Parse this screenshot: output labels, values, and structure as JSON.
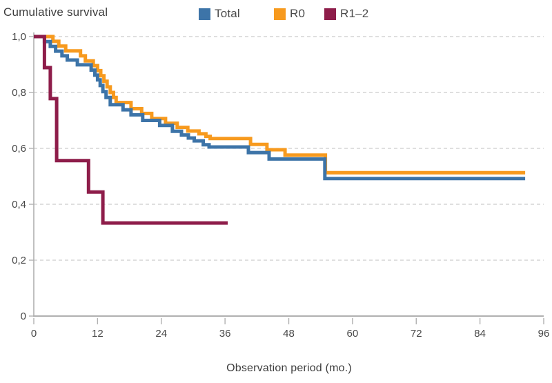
{
  "header": {
    "title": "Cumulative survival"
  },
  "axis": {
    "x_title": "Observation period (mo.)"
  },
  "chart_data": {
    "type": "line",
    "subtype": "kaplan-meier-step",
    "title": "Cumulative survival",
    "xlabel": "Observation period (mo.)",
    "ylabel": "Cumulative survival",
    "xlim": [
      0,
      96
    ],
    "ylim": [
      0,
      1.0
    ],
    "grid": "horizontal-dashed",
    "legend_position": "top",
    "x_ticks": [
      0,
      12,
      24,
      36,
      48,
      60,
      72,
      84,
      96
    ],
    "y_ticks": [
      {
        "value": 1.0,
        "label": "1,0"
      },
      {
        "value": 0.8,
        "label": "0,8"
      },
      {
        "value": 0.6,
        "label": "0,6"
      },
      {
        "value": 0.4,
        "label": "0,4"
      },
      {
        "value": 0.2,
        "label": "0,2"
      },
      {
        "value": 0.0,
        "label": "0"
      }
    ],
    "colors": {
      "total": "#3d74a8",
      "r0": "#f79a1e",
      "r12": "#8e1d4a",
      "grid": "#cccccc",
      "axis": "#b0b0b0",
      "text": "#3d3d3d"
    },
    "series": [
      {
        "name": "Total",
        "color": "#3d74a8",
        "start": [
          0,
          1.0
        ],
        "end_month": 92.5,
        "steps": [
          [
            2.0,
            0.982
          ],
          [
            3.1,
            0.965
          ],
          [
            4.1,
            0.948
          ],
          [
            5.3,
            0.931
          ],
          [
            6.3,
            0.916
          ],
          [
            8.2,
            0.899
          ],
          [
            10.8,
            0.88
          ],
          [
            11.5,
            0.862
          ],
          [
            12.0,
            0.845
          ],
          [
            12.5,
            0.825
          ],
          [
            13.0,
            0.803
          ],
          [
            13.6,
            0.782
          ],
          [
            14.4,
            0.756
          ],
          [
            16.8,
            0.738
          ],
          [
            18.3,
            0.72
          ],
          [
            20.5,
            0.7
          ],
          [
            23.7,
            0.682
          ],
          [
            26.1,
            0.661
          ],
          [
            27.8,
            0.648
          ],
          [
            29.1,
            0.637
          ],
          [
            30.2,
            0.627
          ],
          [
            31.9,
            0.613
          ],
          [
            33.0,
            0.605
          ],
          [
            40.4,
            0.585
          ],
          [
            44.3,
            0.562
          ],
          [
            54.8,
            0.492
          ]
        ]
      },
      {
        "name": "R0",
        "color": "#f79a1e",
        "start": [
          0,
          1.0
        ],
        "end_month": 92.5,
        "steps": [
          [
            3.6,
            0.983
          ],
          [
            4.7,
            0.966
          ],
          [
            6.0,
            0.949
          ],
          [
            8.8,
            0.931
          ],
          [
            9.7,
            0.913
          ],
          [
            11.2,
            0.896
          ],
          [
            12.0,
            0.878
          ],
          [
            12.6,
            0.86
          ],
          [
            13.2,
            0.84
          ],
          [
            13.8,
            0.82
          ],
          [
            14.4,
            0.8
          ],
          [
            15.0,
            0.782
          ],
          [
            15.5,
            0.764
          ],
          [
            18.3,
            0.742
          ],
          [
            20.3,
            0.725
          ],
          [
            22.2,
            0.707
          ],
          [
            24.8,
            0.69
          ],
          [
            27.0,
            0.675
          ],
          [
            29.0,
            0.662
          ],
          [
            31.1,
            0.652
          ],
          [
            32.4,
            0.643
          ],
          [
            33.2,
            0.635
          ],
          [
            40.8,
            0.614
          ],
          [
            43.9,
            0.595
          ],
          [
            47.3,
            0.576
          ],
          [
            54.9,
            0.513
          ]
        ]
      },
      {
        "name": "R1–2",
        "color": "#8e1d4a",
        "start": [
          0,
          1.0
        ],
        "end_month": 36.5,
        "steps": [
          [
            2.0,
            0.889
          ],
          [
            3.1,
            0.778
          ],
          [
            4.3,
            0.556
          ],
          [
            10.3,
            0.444
          ],
          [
            13.0,
            0.333
          ]
        ]
      }
    ]
  }
}
